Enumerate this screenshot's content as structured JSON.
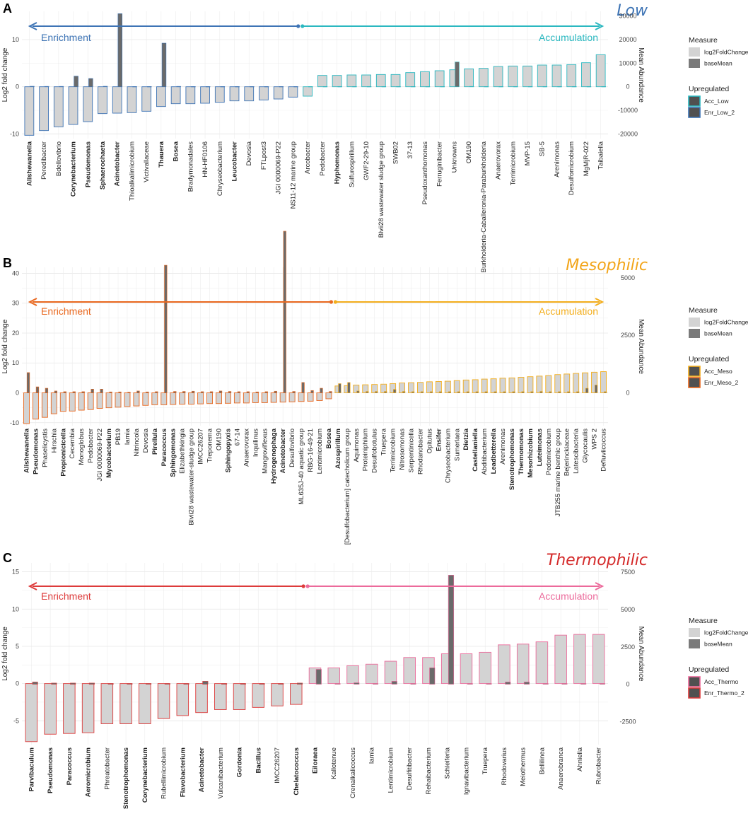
{
  "chart_data": [
    {
      "type": "bar",
      "panel_letter": "A",
      "title": "Low",
      "title_color": "#3e74b5",
      "left_color": "#3e74b5",
      "right_color": "#2bb8c0",
      "left_label": "Enrichment",
      "right_label": "Accumulation",
      "ylabel": "Log2 fold change",
      "y2label": "Mean Abundance",
      "ylim": [
        -11,
        16
      ],
      "y2lim": [
        -22000,
        32000
      ],
      "yticks": [
        -10,
        0,
        10
      ],
      "y2ticks": [
        -20000,
        -10000,
        0,
        10000,
        20000,
        30000
      ],
      "legend": {
        "measure_title": "Measure",
        "measure_items": [
          "log2FoldChange",
          "baseMean"
        ],
        "upreg_title": "Upregulated",
        "upreg_items": [
          "Acc_Low",
          "Enr_Low_2"
        ]
      },
      "categories": [
        "Alishewanella",
        "Peredibacter",
        "Bdellovibrio",
        "Corynebacterium",
        "Pseudomonas",
        "Sphaerochaeta",
        "Acinetobacter",
        "Thioalkalimicrobium",
        "Victivallaceae",
        "Thauera",
        "Bosea",
        "Bradymonadales",
        "HN-HF0106",
        "Chryseobacterium",
        "Leucobacter",
        "Devosia",
        "FTLpost3",
        "JGI 0000069-P22",
        "NS11-12 marine group",
        "Arcobacter",
        "Pedobacter",
        "Hyphomonas",
        "Sulfurospirillum",
        "GWF2-29-10",
        "Blvii28 wastewater sludge group",
        "SWB02",
        "37-13",
        "Pseudoxanthomonas",
        "Ferruginibacter",
        "Unknowns",
        "OM190",
        "Burkholderia-Caballeronia-Paraburkholderia",
        "Anaerovorax",
        "Terrimicrobium",
        "MVP-15",
        "SB-5",
        "Arenimonas",
        "Desulfomicrobium",
        "MgMjR-022",
        "Taibaiella"
      ],
      "bold": [
        "Alishewanella",
        "Corynebacterium",
        "Pseudomonas",
        "Sphaerochaeta",
        "Acinetobacter",
        "Thauera",
        "Bosea",
        "Leucobacter",
        "Hyphomonas"
      ],
      "red": [
        "Peredibacter",
        "Bdellovibrio"
      ],
      "log2FoldChange": [
        -10.3,
        -9.3,
        -8.5,
        -8.0,
        -7.4,
        -5.7,
        -5.6,
        -5.5,
        -5.2,
        -4.2,
        -3.6,
        -3.6,
        -3.5,
        -3.3,
        -3.0,
        -3.0,
        -2.8,
        -2.6,
        -2.2,
        -2.0,
        2.4,
        2.4,
        2.5,
        2.5,
        2.6,
        2.6,
        3.0,
        3.2,
        3.4,
        3.6,
        3.8,
        3.9,
        4.3,
        4.4,
        4.4,
        4.6,
        4.6,
        4.7,
        5.1,
        6.8
      ],
      "baseMean": [
        200,
        150,
        150,
        4500,
        3500,
        200,
        31000,
        100,
        100,
        18500,
        150,
        100,
        100,
        100,
        100,
        100,
        100,
        100,
        100,
        100,
        100,
        100,
        100,
        100,
        100,
        100,
        100,
        100,
        100,
        10500,
        150,
        100,
        100,
        100,
        100,
        100,
        100,
        100,
        100,
        100
      ],
      "split": 19
    },
    {
      "type": "bar",
      "panel_letter": "B",
      "title": "Mesophilic",
      "title_color": "#f2a51a",
      "left_color": "#e9681f",
      "right_color": "#f3ae1d",
      "left_label": "Enrichment",
      "right_label": "Accumulation",
      "ylabel": "Log2 fold change",
      "y2label": "Mean Abundance",
      "ylim": [
        -11,
        42
      ],
      "y2lim": [
        -1430,
        5460
      ],
      "yticks": [
        -10,
        0,
        10,
        20,
        30,
        40
      ],
      "y2ticks": [
        0,
        2500,
        5000
      ],
      "legend": {
        "measure_title": "Measure",
        "measure_items": [
          "log2FoldChange",
          "baseMean"
        ],
        "upreg_title": "Upregulated",
        "upreg_items": [
          "Acc_Meso",
          "Enr_Meso_2"
        ]
      },
      "categories": [
        "Alishewanella",
        "Pseudomonas",
        "Phaselicystis",
        "Hirschia",
        "Propionicicella",
        "Cecembia",
        "Monoglobus",
        "Pedobacter",
        "JGI 0000069-P22",
        "Mycobacterium",
        "PB19",
        "Iamia",
        "Nitrincola",
        "Devosia",
        "Pirellula",
        "Paracoccus",
        "Sphingomonas",
        "Elizabethkingia",
        "Blvii28 wastewater-sludge group",
        "IMCC26207",
        "Treponema",
        "OM190",
        "Sphingopyxis",
        "67-14",
        "Anaerovorax",
        "Inquilinus",
        "Mangroviflexus",
        "Hydrogenophaga",
        "Acinetobacter",
        "Desulfovibrio",
        "ML635J-40 aquatic group",
        "RBG-16-49-21",
        "Lentimicrobium",
        "Bosea",
        "Azospirillum",
        "[Desulfobacterium] catecholicum group",
        "Aquimonas",
        "Proteiniphilum",
        "Desulfobotulus",
        "Truepera",
        "Terrimicrobium",
        "Nitrosomonas",
        "Serpentinicella",
        "Rhodanobacter",
        "Opitutus",
        "Ensifer",
        "Chryseobacterium",
        "Sumerlaea",
        "Dietzia",
        "Castellaniella",
        "Abditibacterium",
        "Leadbetterella",
        "Arenimonas",
        "Stenotrophomonas",
        "Thermomonas",
        "Mesorhizobium",
        "Luteimonas",
        "Pedomicrobium",
        "JTB255 marine benthic group",
        "Bejerinckiaceae",
        "Latescibacteria",
        "Glycocaulis",
        "WPS 2",
        "Defluviicoccus"
      ],
      "bold": [
        "Alishewanella",
        "Pseudomonas",
        "Propionicicella",
        "Mycobacterium",
        "Pirellula",
        "Paracoccus",
        "Sphingomonas",
        "Sphingopyxis",
        "Hydrogenophaga",
        "Acinetobacter",
        "Bosea",
        "Azospirillum",
        "Ensifer",
        "Dietzia",
        "Castellaniella",
        "Leadbetterella",
        "Stenotrophomonas",
        "Thermomonas",
        "Mesorhizobium",
        "Luteimonas"
      ],
      "red": [],
      "log2FoldChange": [
        -10.3,
        -8.8,
        -8.2,
        -7.0,
        -6.2,
        -6.1,
        -5.8,
        -5.6,
        -5.2,
        -5.0,
        -4.8,
        -4.6,
        -4.4,
        -4.2,
        -4.0,
        -4.0,
        -3.9,
        -3.8,
        -3.8,
        -3.7,
        -3.6,
        -3.6,
        -3.5,
        -3.4,
        -3.4,
        -3.3,
        -3.3,
        -3.2,
        -3.1,
        -3.0,
        -2.9,
        -2.8,
        -2.6,
        -2.0,
        2.3,
        2.4,
        2.6,
        2.7,
        2.8,
        2.9,
        3.1,
        3.3,
        3.4,
        3.5,
        3.7,
        3.8,
        3.9,
        4.1,
        4.3,
        4.4,
        4.6,
        4.7,
        4.9,
        5.0,
        5.2,
        5.4,
        5.6,
        5.8,
        6.1,
        6.3,
        6.5,
        6.7,
        6.9,
        7.1
      ],
      "baseMean": [
        880,
        260,
        200,
        80,
        50,
        50,
        50,
        160,
        160,
        40,
        40,
        30,
        80,
        40,
        50,
        5550,
        60,
        60,
        70,
        50,
        50,
        80,
        60,
        50,
        50,
        40,
        50,
        70,
        7030,
        60,
        450,
        100,
        200,
        60,
        400,
        450,
        80,
        60,
        60,
        60,
        150,
        60,
        50,
        50,
        50,
        50,
        50,
        50,
        50,
        50,
        50,
        50,
        50,
        50,
        50,
        50,
        60,
        50,
        50,
        50,
        50,
        200,
        340,
        50
      ],
      "split": 34
    },
    {
      "type": "bar",
      "panel_letter": "C",
      "title": "Thermophilic",
      "title_color": "#d42a2a",
      "left_color": "#dd3b3b",
      "right_color": "#ec6a9b",
      "left_label": "Enrichment",
      "right_label": "Accumulation",
      "ylabel": "Log2 fold change",
      "y2label": "Mean Abundance",
      "ylim": [
        -8.2,
        16.2
      ],
      "y2lim": [
        -4040,
        8120
      ],
      "yticks": [
        -5,
        0,
        5,
        10,
        15
      ],
      "y2ticks": [
        -2500,
        0,
        2500,
        5000,
        7500
      ],
      "legend": {
        "measure_title": "Measure",
        "measure_items": [
          "log2FoldChange",
          "baseMean"
        ],
        "upreg_title": "Upregulated",
        "upreg_items": [
          "Acc_Thermo",
          "Enr_Thermo_2"
        ]
      },
      "categories": [
        "Parvibaculum",
        "Pseudomonas",
        "Paracoccus",
        "Aeromicrobium",
        "Phreatobacter",
        "Stenotrophomonas",
        "Corynebacterium",
        "Rubellimicrobium",
        "Flavobacterium",
        "Acinetobacter",
        "Vulcanibacterium",
        "Gordonia",
        "Bacillus",
        "IMCC26207",
        "Chelatococcus",
        "Eiloraea",
        "Kallotenue",
        "Crenalkalicoccus",
        "Iamia",
        "Lentimicrobium",
        "Desulfitibacter",
        "Rehaibacterium",
        "Schleiferia",
        "Ignavibacterium",
        "Truepera",
        "Rhodovarius",
        "Meiothermus",
        "Bellilinea",
        "Anaerobranca",
        "Ahniella",
        "Rubrobacter"
      ],
      "bold": [
        "Parvibaculum",
        "Pseudomonas",
        "Paracoccus",
        "Aeromicrobium",
        "Stenotrophomonas",
        "Corynebacterium",
        "Flavobacterium",
        "Acinetobacter",
        "Gordonia",
        "Bacillus",
        "Chelatococcus",
        "Eiloraea"
      ],
      "red": [],
      "log2FoldChange": [
        -7.8,
        -6.8,
        -6.7,
        -6.6,
        -5.4,
        -5.4,
        -5.4,
        -4.7,
        -4.3,
        -3.9,
        -3.5,
        -3.5,
        -3.2,
        -3.0,
        -2.8,
        2.1,
        2.1,
        2.4,
        2.6,
        3.0,
        3.5,
        3.5,
        4.0,
        4.0,
        4.2,
        5.2,
        5.3,
        5.6,
        6.5,
        6.6,
        6.6
      ],
      "baseMean": [
        150,
        80,
        80,
        80,
        50,
        50,
        50,
        50,
        50,
        200,
        50,
        50,
        50,
        50,
        80,
        1000,
        50,
        100,
        50,
        200,
        50,
        1100,
        7300,
        50,
        50,
        150,
        150,
        50,
        50,
        50,
        50
      ],
      "split": 15
    }
  ]
}
